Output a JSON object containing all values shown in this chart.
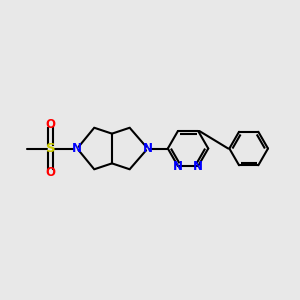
{
  "bg_color": "#e8e8e8",
  "line_color": "#000000",
  "N_color": "#0000ff",
  "O_color": "#ff0000",
  "S_color": "#cccc00",
  "line_width": 1.5,
  "font_size": 8.5,
  "xlim": [
    0,
    10
  ],
  "ylim": [
    0,
    10
  ],
  "figsize": [
    3.0,
    3.0
  ],
  "dpi": 100
}
